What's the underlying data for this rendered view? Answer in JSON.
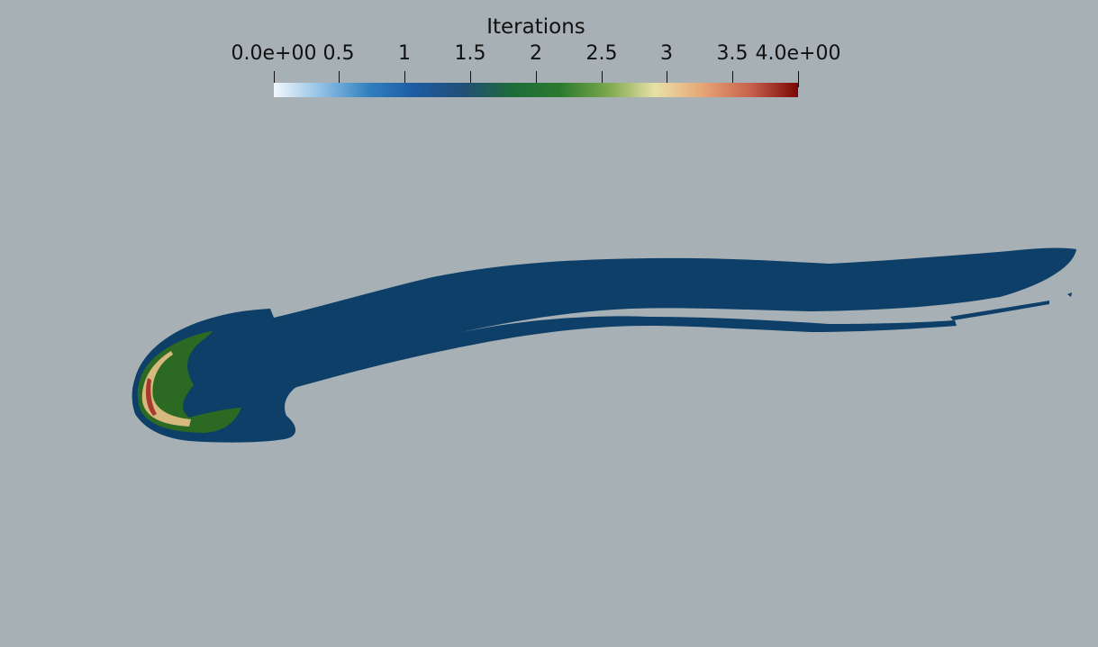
{
  "colorbar": {
    "title": "Iterations",
    "min_label": "0.0e+00",
    "max_label": "4.0e+00",
    "ticks": [
      "0.5",
      "1",
      "1.5",
      "2",
      "2.5",
      "3",
      "3.5"
    ],
    "range": [
      0,
      4
    ],
    "colors": [
      "#f2f7fb",
      "#8fc0e6",
      "#2f7fbe",
      "#1d5aa0",
      "#214f74",
      "#1e6b3a",
      "#2a7a2e",
      "#7aa64c",
      "#e8e1a7",
      "#e6a575",
      "#c7624d",
      "#7a0505"
    ]
  },
  "field": {
    "background": "#a6b0b5",
    "region_colors": {
      "one_iteration": "#0d3f69",
      "two_iterations": "#2c6a23",
      "three_iterations": "#d6b97c",
      "four_iterations": "#a73a2e"
    }
  }
}
